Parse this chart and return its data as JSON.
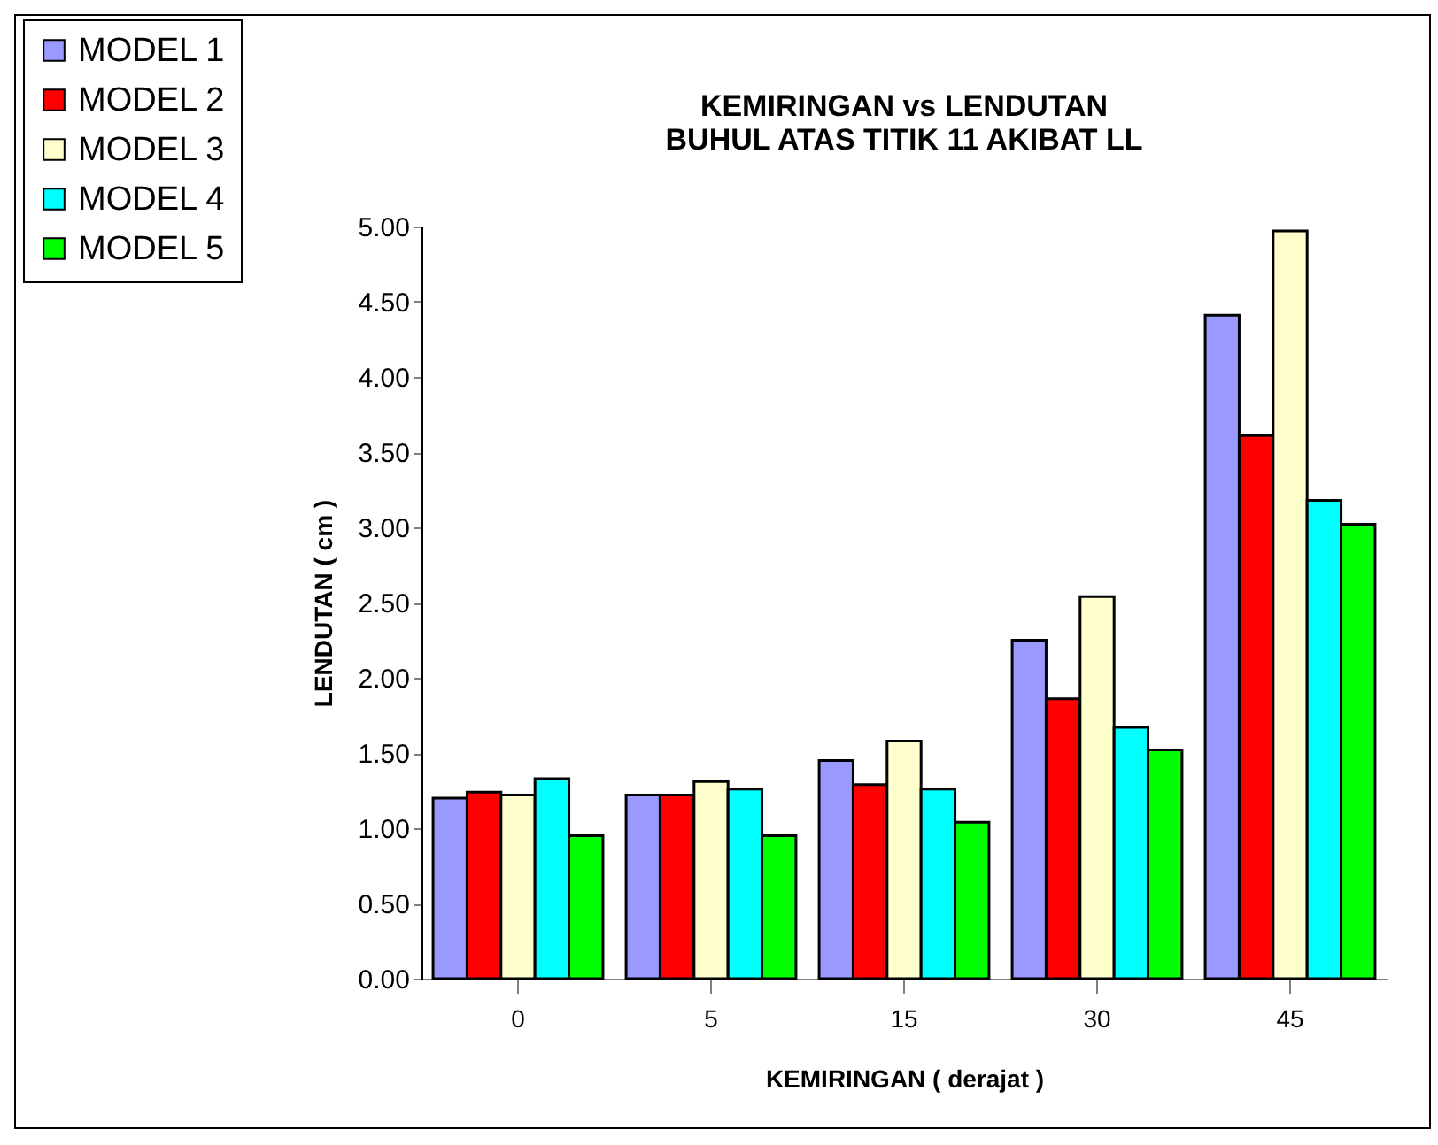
{
  "chart_data": {
    "type": "bar",
    "title": [
      "KEMIRINGAN vs LENDUTAN",
      "BUHUL ATAS TITIK 11 AKIBAT LL"
    ],
    "xlabel": "KEMIRINGAN ( derajat )",
    "ylabel": "LENDUTAN ( cm )",
    "categories": [
      "0",
      "5",
      "15",
      "30",
      "45"
    ],
    "series": [
      {
        "name": "MODEL 1",
        "color": "#9999ff",
        "values": [
          1.2,
          1.22,
          1.45,
          2.25,
          4.41
        ]
      },
      {
        "name": "MODEL 2",
        "color": "#ff0000",
        "values": [
          1.24,
          1.22,
          1.29,
          1.86,
          3.61
        ]
      },
      {
        "name": "MODEL 3",
        "color": "#ffffcc",
        "values": [
          1.22,
          1.31,
          1.58,
          2.54,
          4.97
        ]
      },
      {
        "name": "MODEL 4",
        "color": "#00ffff",
        "values": [
          1.33,
          1.26,
          1.26,
          1.67,
          3.18
        ]
      },
      {
        "name": "MODEL 5",
        "color": "#00ff00",
        "values": [
          0.95,
          0.95,
          1.04,
          1.52,
          3.02
        ]
      }
    ],
    "ylim": [
      0,
      5
    ],
    "yticks": [
      {
        "value": 0,
        "label": "0.00"
      },
      {
        "value": 0.5,
        "label": "0.50"
      },
      {
        "value": 1,
        "label": "1.00"
      },
      {
        "value": 1.5,
        "label": "1.50"
      },
      {
        "value": 2,
        "label": "2.00"
      },
      {
        "value": 2.5,
        "label": "2.50"
      },
      {
        "value": 3,
        "label": "3.00"
      },
      {
        "value": 3.5,
        "label": "3.50"
      },
      {
        "value": 4,
        "label": "4.00"
      },
      {
        "value": 4.5,
        "label": "4.50"
      },
      {
        "value": 5,
        "label": "5.00"
      }
    ],
    "legend": "top left",
    "grid": false
  }
}
